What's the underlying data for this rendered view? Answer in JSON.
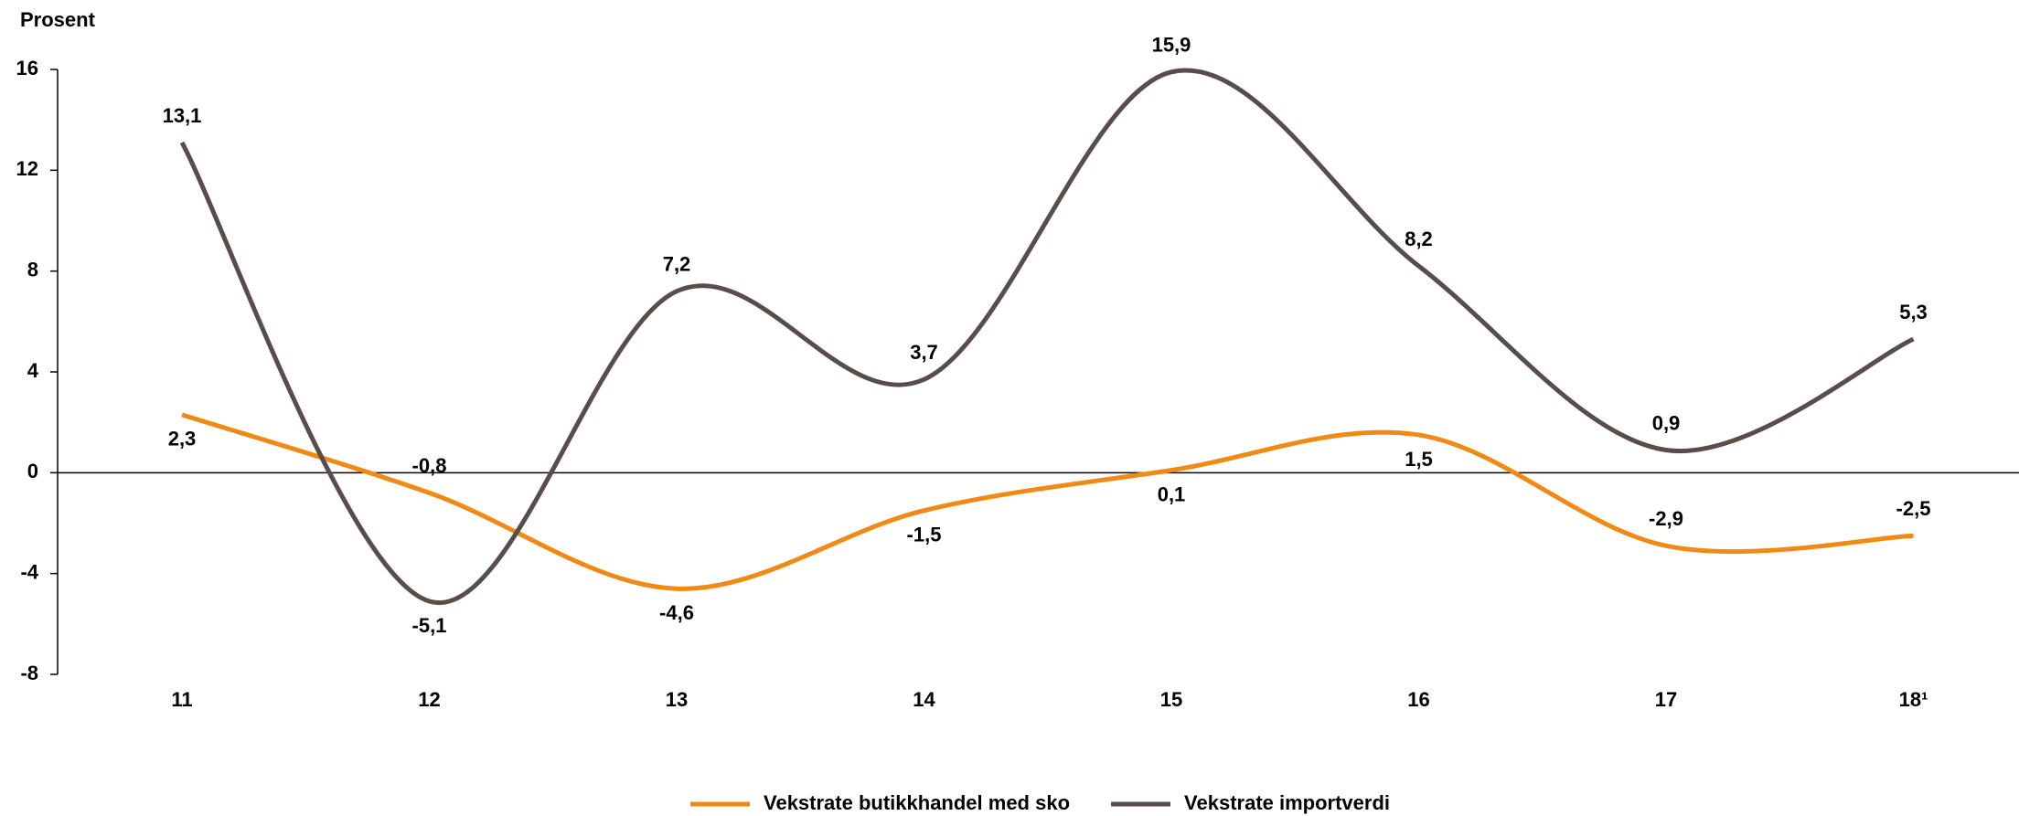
{
  "chart_data": {
    "type": "line",
    "y_label": "Prosent",
    "categories": [
      "11",
      "12",
      "13",
      "14",
      "15",
      "16",
      "17",
      "18¹"
    ],
    "series": [
      {
        "name": "Vekstrate butikkhandel med sko",
        "color": "#f08a14",
        "values": [
          2.3,
          -0.8,
          -4.6,
          -1.5,
          0.1,
          1.5,
          -2.9,
          -2.5
        ],
        "value_labels": [
          "2,3",
          "-0,8",
          "-4,6",
          "-1,5",
          "0,1",
          "1,5",
          "-2,9",
          "-2,5"
        ]
      },
      {
        "name": "Vekstrate importverdi",
        "color": "#574d4a",
        "values": [
          13.1,
          -5.1,
          7.2,
          3.7,
          15.9,
          8.2,
          0.9,
          5.3
        ],
        "value_labels": [
          "13,1",
          "-5,1",
          "7,2",
          "3,7",
          "15,9",
          "8,2",
          "0,9",
          "5,3"
        ]
      }
    ],
    "ylim": [
      -8,
      16
    ],
    "yticks": [
      -8,
      -4,
      0,
      4,
      8,
      12,
      16
    ],
    "legend": "bottom"
  }
}
